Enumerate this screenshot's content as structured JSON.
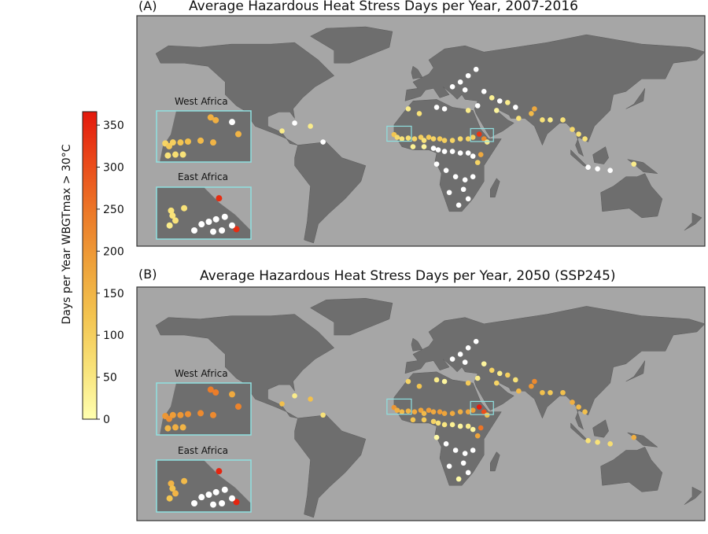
{
  "panels": [
    {
      "label": "(A)",
      "title": "Average Hazardous Heat Stress Days per Year, 2007-2016",
      "value_key": 0,
      "insets": [
        {
          "title": "West Africa"
        },
        {
          "title": "East Africa"
        }
      ]
    },
    {
      "label": "(B)",
      "title": "Average Hazardous Heat Stress Days per Year, 2050 (SSP245)",
      "value_key": 1,
      "insets": [
        {
          "title": "West Africa"
        },
        {
          "title": "East Africa"
        }
      ]
    }
  ],
  "colorbar": {
    "label": "Days per Year WBGTmax > 30°C",
    "ticks": [
      "0",
      "50",
      "100",
      "150",
      "200",
      "250",
      "300",
      "350"
    ],
    "tick_values": [
      0,
      50,
      100,
      150,
      200,
      250,
      300,
      350
    ],
    "range": [
      0,
      366
    ],
    "colors": [
      "#ffffb0",
      "#f8e278",
      "#f3c450",
      "#eea23a",
      "#ec7a28",
      "#ea4a1a",
      "#e3180c"
    ]
  },
  "colors": {
    "ocean": "#a6a6a6",
    "land": "#6e6e6e",
    "inset_border": "#8fe0e0",
    "zero": "#ffffff"
  },
  "map_extent": {
    "lon": [
      -180,
      180
    ],
    "lat": [
      -56,
      90
    ]
  },
  "sites": [
    [
      -17,
      14.7,
      120,
      200
    ],
    [
      -15,
      13,
      80,
      160
    ],
    [
      -12,
      12,
      60,
      140
    ],
    [
      -8,
      12.5,
      70,
      150
    ],
    [
      -4,
      12,
      90,
      170
    ],
    [
      0,
      13,
      100,
      180
    ],
    [
      2,
      11,
      60,
      140
    ],
    [
      5,
      13,
      110,
      190
    ],
    [
      8,
      12,
      90,
      170
    ],
    [
      12,
      12,
      110,
      190
    ],
    [
      15,
      11,
      100,
      180
    ],
    [
      20,
      11,
      90,
      170
    ],
    [
      25,
      12,
      80,
      160
    ],
    [
      30,
      12,
      90,
      175
    ],
    [
      33,
      13,
      100,
      185
    ],
    [
      37,
      15,
      330,
      360
    ],
    [
      40,
      12,
      220,
      300
    ],
    [
      42,
      10,
      40,
      130
    ],
    [
      38,
      2,
      170,
      250
    ],
    [
      36,
      -3,
      90,
      180
    ],
    [
      -5,
      7,
      30,
      120
    ],
    [
      2,
      7,
      20,
      110
    ],
    [
      8,
      6,
      0,
      90
    ],
    [
      11,
      5,
      0,
      60
    ],
    [
      15,
      4,
      0,
      50
    ],
    [
      20,
      4,
      0,
      30
    ],
    [
      25,
      3,
      0,
      20
    ],
    [
      30,
      3,
      0,
      40
    ],
    [
      33,
      1,
      0,
      20
    ],
    [
      10,
      -4,
      0,
      10
    ],
    [
      16,
      -8,
      0,
      0
    ],
    [
      22,
      -12,
      0,
      0
    ],
    [
      28,
      -14,
      0,
      0
    ],
    [
      33,
      -12,
      0,
      0
    ],
    [
      27,
      -20,
      0,
      0
    ],
    [
      18,
      -22,
      0,
      0
    ],
    [
      30,
      -26,
      0,
      0
    ],
    [
      24,
      -30,
      0,
      10
    ],
    [
      -1,
      28,
      60,
      120
    ],
    [
      -8,
      31,
      40,
      90
    ],
    [
      10,
      32,
      0,
      40
    ],
    [
      15,
      31,
      0,
      20
    ],
    [
      30,
      30,
      40,
      110
    ],
    [
      36,
      33,
      0,
      40
    ],
    [
      20,
      45,
      0,
      0
    ],
    [
      25,
      48,
      0,
      0
    ],
    [
      30,
      52,
      0,
      0
    ],
    [
      35,
      56,
      0,
      0
    ],
    [
      28,
      43,
      0,
      0
    ],
    [
      40,
      42,
      0,
      20
    ],
    [
      45,
      38,
      30,
      90
    ],
    [
      50,
      36,
      0,
      40
    ],
    [
      55,
      35,
      40,
      100
    ],
    [
      60,
      32,
      0,
      60
    ],
    [
      48,
      30,
      20,
      90
    ],
    [
      62,
      25,
      60,
      140
    ],
    [
      70,
      28,
      140,
      200
    ],
    [
      72,
      31,
      170,
      220
    ],
    [
      77,
      24,
      60,
      130
    ],
    [
      82,
      24,
      40,
      110
    ],
    [
      90,
      24,
      60,
      130
    ],
    [
      96,
      18,
      80,
      160
    ],
    [
      100,
      15,
      60,
      140
    ],
    [
      104,
      12,
      60,
      130
    ],
    [
      106,
      -6,
      0,
      60
    ],
    [
      112,
      -7,
      0,
      60
    ],
    [
      120,
      -8,
      0,
      70
    ],
    [
      135,
      -4,
      40,
      160
    ],
    [
      -70,
      20,
      40,
      130
    ],
    [
      -80,
      22,
      0,
      40
    ],
    [
      -88,
      17,
      40,
      130
    ],
    [
      -62,
      10,
      0,
      60
    ]
  ],
  "inset_points": {
    "west": [
      [
        -16.8,
        14.5,
        90,
        200
      ],
      [
        -16.5,
        14.2,
        110,
        210
      ],
      [
        -16.2,
        14.6,
        100,
        190
      ],
      [
        -15.6,
        14.6,
        120,
        200
      ],
      [
        -15,
        14.7,
        130,
        210
      ],
      [
        -14,
        14.8,
        140,
        220
      ],
      [
        -13,
        14.6,
        150,
        220
      ],
      [
        -16.6,
        13.2,
        60,
        150
      ],
      [
        -16,
        13.3,
        70,
        160
      ],
      [
        -15.4,
        13.3,
        60,
        150
      ],
      [
        -13.2,
        17.3,
        160,
        240
      ],
      [
        -12.8,
        17,
        160,
        240
      ],
      [
        -11,
        15.5,
        150,
        230
      ],
      [
        -11.5,
        16.8,
        0,
        170
      ]
    ],
    "east": [
      [
        36.5,
        14.6,
        60,
        150
      ],
      [
        36.6,
        14.2,
        60,
        130
      ],
      [
        36.8,
        13.8,
        60,
        150
      ],
      [
        37.4,
        14.8,
        60,
        140
      ],
      [
        36.4,
        13.4,
        40,
        120
      ],
      [
        39.8,
        15.6,
        340,
        350
      ],
      [
        41,
        13.1,
        340,
        350
      ],
      [
        38.6,
        13.5,
        0,
        0
      ],
      [
        39.1,
        13.7,
        0,
        0
      ],
      [
        39.6,
        13.9,
        0,
        0
      ],
      [
        40.2,
        14.1,
        0,
        0
      ],
      [
        40.7,
        13.4,
        0,
        0
      ],
      [
        38.1,
        13.0,
        0,
        0
      ],
      [
        39.4,
        12.9,
        0,
        0
      ],
      [
        40.0,
        13.0,
        0,
        0
      ]
    ]
  }
}
